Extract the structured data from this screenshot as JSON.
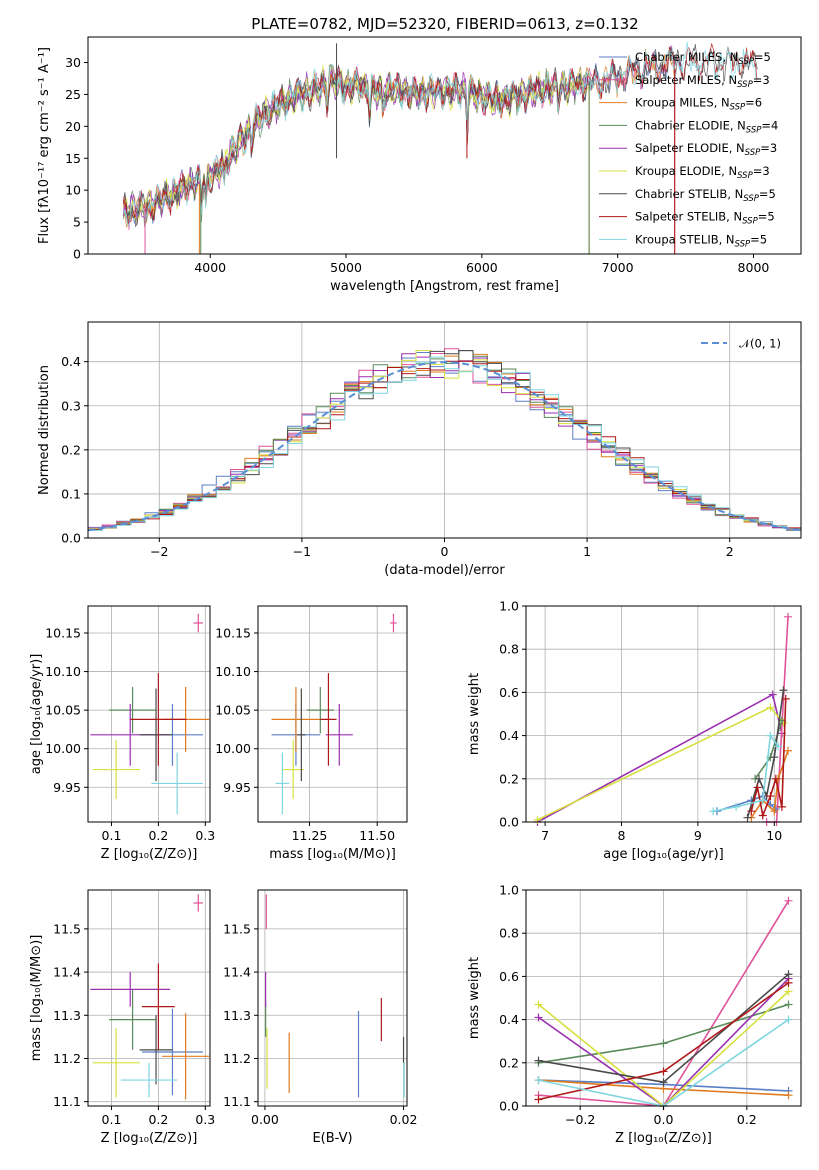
{
  "figure_title": "PLATE=0782, MJD=52320, FIBERID=0613, z=0.132",
  "colors": {
    "chabrier_miles": "#5a7fc7",
    "salpeter_miles": "#e0529a",
    "kroupa_miles": "#e07b1f",
    "chabrier_elodie": "#5a8a5a",
    "salpeter_elodie": "#9a2fb0",
    "kroupa_elodie": "#d6e040",
    "chabrier_stelib": "#4a4a4a",
    "salpeter_stelib": "#b01818",
    "kroupa_stelib": "#7fd6e0",
    "normal": "#5a8fd6"
  },
  "chart_data": [
    {
      "id": "spectrum",
      "type": "line",
      "title": "PLATE=0782, MJD=52320, FIBERID=0613, z=0.132",
      "xlabel": "wavelength [Angstrom, rest frame]",
      "ylabel": "Flux [fλ10⁻¹⁷ erg cm⁻² s⁻¹ A⁻¹]",
      "xlim": [
        3100,
        8350
      ],
      "ylim": [
        0,
        34
      ],
      "xticks": [
        4000,
        5000,
        6000,
        7000,
        8000
      ],
      "yticks": [
        0,
        5,
        10,
        15,
        20,
        25,
        30
      ],
      "legend_position": "right",
      "continuum": {
        "x": [
          3360,
          3450,
          3550,
          3700,
          3850,
          3950,
          4050,
          4200,
          4350,
          4500,
          4650,
          4800,
          4900,
          5000,
          5100,
          5200,
          5350,
          5500,
          5700,
          5900,
          6100,
          6300,
          6500,
          6700,
          6900,
          7100,
          7300,
          7450
        ],
        "y": [
          6.5,
          7,
          7.5,
          9,
          11,
          11.5,
          13,
          17,
          21,
          23.5,
          25,
          26,
          27.5,
          26,
          26.5,
          25.5,
          25.8,
          25,
          25.5,
          25.5,
          24,
          25,
          26,
          26.5,
          27,
          28.5,
          29.5,
          30
        ]
      },
      "series": [
        {
          "name": "Chabrier MILES, N_SSP=5",
          "label_text": "Chabrier MILES, N",
          "label_sub": "SSP",
          "label_suffix": "=5",
          "color_key": "chabrier_miles",
          "x_end": 7480,
          "marker": "plus"
        },
        {
          "name": "Salpeter MILES, N_SSP=3",
          "label_text": "Salpeter MILES, N",
          "label_sub": "SSP",
          "label_suffix": "=3",
          "color_key": "salpeter_miles",
          "x_end": 7420
        },
        {
          "name": "Kroupa MILES, N_SSP=6",
          "label_text": "Kroupa MILES, N",
          "label_sub": "SSP",
          "label_suffix": "=6",
          "color_key": "kroupa_miles",
          "x_end": 7420
        },
        {
          "name": "Chabrier ELODIE, N_SSP=4",
          "label_text": "Chabrier ELODIE, N",
          "label_sub": "SSP",
          "label_suffix": "=4",
          "color_key": "chabrier_elodie",
          "x_end": 6790
        },
        {
          "name": "Salpeter ELODIE, N_SSP=3",
          "label_text": "Salpeter ELODIE, N",
          "label_sub": "SSP",
          "label_suffix": "=3",
          "color_key": "salpeter_elodie",
          "x_end": 6790
        },
        {
          "name": "Kroupa ELODIE, N_SSP=3",
          "label_text": "Kroupa ELODIE, N",
          "label_sub": "SSP",
          "label_suffix": "=3",
          "color_key": "kroupa_elodie",
          "x_end": 6790
        },
        {
          "name": "Chabrier STELIB, N_SSP=5",
          "label_text": "Chabrier STELIB, N",
          "label_sub": "SSP",
          "label_suffix": "=5",
          "color_key": "chabrier_stelib",
          "x_end": 8030
        },
        {
          "name": "Salpeter STELIB, N_SSP=5",
          "label_text": "Salpeter STELIB, N",
          "label_sub": "SSP",
          "label_suffix": "=5",
          "color_key": "salpeter_stelib",
          "x_end": 8030
        },
        {
          "name": "Kroupa STELIB, N_SSP=5",
          "label_text": "Kroupa STELIB, N",
          "label_sub": "SSP",
          "label_suffix": "=5",
          "color_key": "kroupa_stelib",
          "x_end": 8030
        }
      ]
    },
    {
      "id": "residuals",
      "type": "histogram",
      "xlabel": "(data-model)/error",
      "ylabel": "Normed distribution",
      "xlim": [
        -2.5,
        2.5
      ],
      "ylim": [
        0,
        0.49
      ],
      "xticks": [
        -2,
        -1,
        0,
        1,
        2
      ],
      "xtick_labels": [
        "−2",
        "−1",
        "0",
        "1",
        "2"
      ],
      "yticks": [
        0.0,
        0.1,
        0.2,
        0.3,
        0.4
      ],
      "ytick_labels": [
        "0.0",
        "0.1",
        "0.2",
        "0.3",
        "0.4"
      ],
      "grid": true,
      "bin_width": 0.1,
      "legend": [
        {
          "label": "𝒩(0, 1)",
          "style": "dashed",
          "color_key": "normal"
        }
      ],
      "legend_position": "top-right"
    },
    {
      "id": "age_vs_Z",
      "type": "errorbar",
      "xlabel": "Z [log₁₀(Z/Z⊙)]",
      "ylabel": "age  [log₁₀(age/yr)]",
      "xlim": [
        0.05,
        0.31
      ],
      "ylim": [
        9.905,
        10.185
      ],
      "xticks": [
        0.1,
        0.2,
        0.3
      ],
      "xtick_labels": [
        "0.1",
        "0.2",
        "0.3"
      ],
      "yticks": [
        9.95,
        10.0,
        10.05,
        10.1,
        10.15
      ],
      "ytick_labels": [
        "9.95",
        "10.00",
        "10.05",
        "10.10",
        "10.15"
      ],
      "grid": true,
      "points": [
        {
          "color_key": "chabrier_miles",
          "x": 0.23,
          "xerr": 0.065,
          "y": 10.018,
          "yerr": 0.04
        },
        {
          "color_key": "salpeter_miles",
          "x": 0.285,
          "xerr": 0.01,
          "y": 10.163,
          "yerr": 0.012
        },
        {
          "color_key": "kroupa_miles",
          "x": 0.258,
          "xerr": 0.05,
          "y": 10.038,
          "yerr": 0.042
        },
        {
          "color_key": "chabrier_elodie",
          "x": 0.145,
          "xerr": 0.05,
          "y": 10.05,
          "yerr": 0.03
        },
        {
          "color_key": "salpeter_elodie",
          "x": 0.14,
          "xerr": 0.085,
          "y": 10.018,
          "yerr": 0.04
        },
        {
          "color_key": "kroupa_elodie",
          "x": 0.11,
          "xerr": 0.05,
          "y": 9.973,
          "yerr": 0.038
        },
        {
          "color_key": "chabrier_stelib",
          "x": 0.195,
          "xerr": 0.035,
          "y": 10.018,
          "yerr": 0.06
        },
        {
          "color_key": "salpeter_stelib",
          "x": 0.2,
          "xerr": 0.06,
          "y": 10.038,
          "yerr": 0.06
        },
        {
          "color_key": "kroupa_stelib",
          "x": 0.24,
          "xerr": 0.055,
          "y": 9.955,
          "yerr": 0.04
        }
      ]
    },
    {
      "id": "age_vs_mass",
      "type": "errorbar",
      "xlabel": "mass [log₁₀(M/M⊙)]",
      "ylabel": "",
      "xlim": [
        11.06,
        11.61
      ],
      "ylim": [
        9.905,
        10.185
      ],
      "xticks": [
        11.25,
        11.5
      ],
      "xtick_labels": [
        "11.25",
        "11.50"
      ],
      "yticks": [
        9.95,
        10.0,
        10.05,
        10.1,
        10.15
      ],
      "ytick_labels": [
        "9.95",
        "10.00",
        "10.05",
        "10.10",
        "10.15"
      ],
      "grid": true,
      "points": [
        {
          "color_key": "chabrier_miles",
          "x": 11.2,
          "xerr": 0.09,
          "y": 10.018,
          "yerr": 0.04
        },
        {
          "color_key": "salpeter_miles",
          "x": 11.56,
          "xerr": 0.012,
          "y": 10.163,
          "yerr": 0.012
        },
        {
          "color_key": "kroupa_miles",
          "x": 11.2,
          "xerr": 0.09,
          "y": 10.038,
          "yerr": 0.042
        },
        {
          "color_key": "chabrier_elodie",
          "x": 11.29,
          "xerr": 0.05,
          "y": 10.05,
          "yerr": 0.03
        },
        {
          "color_key": "salpeter_elodie",
          "x": 11.36,
          "xerr": 0.05,
          "y": 10.018,
          "yerr": 0.04
        },
        {
          "color_key": "kroupa_elodie",
          "x": 11.19,
          "xerr": 0.04,
          "y": 9.973,
          "yerr": 0.038
        },
        {
          "color_key": "chabrier_stelib",
          "x": 11.22,
          "xerr": 0.015,
          "y": 10.018,
          "yerr": 0.06
        },
        {
          "color_key": "salpeter_stelib",
          "x": 11.32,
          "xerr": 0.03,
          "y": 10.038,
          "yerr": 0.06
        },
        {
          "color_key": "kroupa_stelib",
          "x": 11.15,
          "xerr": 0.025,
          "y": 9.955,
          "yerr": 0.04
        }
      ]
    },
    {
      "id": "weight_vs_age",
      "type": "line",
      "xlabel": "age  [log₁₀(age/yr)]",
      "ylabel": "mass weight",
      "xlim": [
        6.75,
        10.35
      ],
      "ylim": [
        0,
        1.0
      ],
      "xticks": [
        7,
        8,
        9,
        10
      ],
      "xtick_labels": [
        "7",
        "8",
        "9",
        "10"
      ],
      "yticks": [
        0.0,
        0.2,
        0.4,
        0.6,
        0.8,
        1.0
      ],
      "ytick_labels": [
        "0.0",
        "0.2",
        "0.4",
        "0.6",
        "0.8",
        "1.0"
      ],
      "grid": true,
      "series": [
        {
          "color_key": "salpeter_elodie",
          "x": [
            6.9,
            9.98,
            10.1
          ],
          "y": [
            0.0,
            0.59,
            0.41
          ]
        },
        {
          "color_key": "kroupa_elodie",
          "x": [
            6.9,
            9.95,
            10.12
          ],
          "y": [
            0.01,
            0.53,
            0.46
          ]
        },
        {
          "color_key": "salpeter_miles",
          "x": [
            9.9,
            10.03,
            10.18
          ],
          "y": [
            0.0,
            0.0,
            0.95
          ]
        },
        {
          "color_key": "chabrier_miles",
          "x": [
            9.25,
            9.7,
            9.85,
            9.95,
            10.02
          ],
          "y": [
            0.05,
            0.1,
            0.12,
            0.08,
            0.06
          ]
        },
        {
          "color_key": "kroupa_miles",
          "x": [
            9.7,
            9.85,
            10.0,
            10.05,
            10.18
          ],
          "y": [
            0.02,
            0.1,
            0.05,
            0.2,
            0.33
          ]
        },
        {
          "color_key": "chabrier_elodie",
          "x": [
            9.75,
            9.95,
            10.1
          ],
          "y": [
            0.2,
            0.3,
            0.47
          ]
        },
        {
          "color_key": "chabrier_stelib",
          "x": [
            9.65,
            9.8,
            9.9,
            10.0,
            10.12
          ],
          "y": [
            0.02,
            0.2,
            0.12,
            0.3,
            0.61
          ]
        },
        {
          "color_key": "salpeter_stelib",
          "x": [
            9.7,
            9.78,
            9.85,
            9.95,
            10.02,
            10.1,
            10.15
          ],
          "y": [
            0.05,
            0.16,
            0.03,
            0.12,
            0.2,
            0.07,
            0.57
          ]
        },
        {
          "color_key": "kroupa_stelib",
          "x": [
            9.2,
            9.5,
            9.85,
            9.95,
            10.05
          ],
          "y": [
            0.05,
            0.07,
            0.1,
            0.4,
            0.35
          ]
        }
      ]
    },
    {
      "id": "mass_vs_Z",
      "type": "errorbar",
      "xlabel": "Z [log₁₀(Z/Z⊙)]",
      "ylabel": "mass [log₁₀(M/M⊙)]",
      "xlim": [
        0.05,
        0.31
      ],
      "ylim": [
        11.09,
        11.59
      ],
      "xticks": [
        0.1,
        0.2,
        0.3
      ],
      "xtick_labels": [
        "0.1",
        "0.2",
        "0.3"
      ],
      "yticks": [
        11.1,
        11.2,
        11.3,
        11.4,
        11.5
      ],
      "ytick_labels": [
        "11.1",
        "11.2",
        "11.3",
        "11.4",
        "11.5"
      ],
      "grid": true,
      "points": [
        {
          "color_key": "chabrier_miles",
          "x": 0.23,
          "xerr": 0.065,
          "y": 11.215,
          "yerr": 0.1
        },
        {
          "color_key": "salpeter_miles",
          "x": 0.285,
          "xerr": 0.01,
          "y": 11.56,
          "yerr": 0.02
        },
        {
          "color_key": "kroupa_miles",
          "x": 0.258,
          "xerr": 0.05,
          "y": 11.205,
          "yerr": 0.1
        },
        {
          "color_key": "chabrier_elodie",
          "x": 0.145,
          "xerr": 0.05,
          "y": 11.29,
          "yerr": 0.07
        },
        {
          "color_key": "salpeter_elodie",
          "x": 0.14,
          "xerr": 0.085,
          "y": 11.36,
          "yerr": 0.04
        },
        {
          "color_key": "kroupa_elodie",
          "x": 0.11,
          "xerr": 0.05,
          "y": 11.19,
          "yerr": 0.08
        },
        {
          "color_key": "chabrier_stelib",
          "x": 0.195,
          "xerr": 0.035,
          "y": 11.22,
          "yerr": 0.08
        },
        {
          "color_key": "salpeter_stelib",
          "x": 0.2,
          "xerr": 0.035,
          "y": 11.32,
          "yerr": 0.1
        },
        {
          "color_key": "kroupa_stelib",
          "x": 0.18,
          "xerr": 0.06,
          "y": 11.15,
          "yerr": 0.04
        }
      ]
    },
    {
      "id": "mass_vs_EBV",
      "type": "errorbar",
      "xlabel": "E(B-V)",
      "ylabel": "",
      "xlim": [
        -0.001,
        0.0205
      ],
      "ylim": [
        11.09,
        11.59
      ],
      "xticks": [
        0.0,
        0.02
      ],
      "xtick_labels": [
        "0.00",
        "0.02"
      ],
      "yticks": [
        11.1,
        11.2,
        11.3,
        11.4,
        11.5
      ],
      "ytick_labels": [
        "11.1",
        "11.2",
        "11.3",
        "11.4",
        "11.5"
      ],
      "grid": true,
      "points": [
        {
          "color_key": "chabrier_miles",
          "x": 0.0135,
          "xerr": 0,
          "y": 11.21,
          "yerr": 0.1
        },
        {
          "color_key": "salpeter_miles",
          "x": 0.0002,
          "xerr": 0,
          "y": 11.54,
          "yerr": 0.04
        },
        {
          "color_key": "kroupa_miles",
          "x": 0.0035,
          "xerr": 0,
          "y": 11.19,
          "yerr": 0.07
        },
        {
          "color_key": "chabrier_elodie",
          "x": 0.0001,
          "xerr": 0,
          "y": 11.29,
          "yerr": 0.04
        },
        {
          "color_key": "salpeter_elodie",
          "x": 0.0001,
          "xerr": 0,
          "y": 11.36,
          "yerr": 0.04
        },
        {
          "color_key": "kroupa_elodie",
          "x": 0.0003,
          "xerr": 0,
          "y": 11.2,
          "yerr": 0.07
        },
        {
          "color_key": "chabrier_stelib",
          "x": 0.02,
          "xerr": 0,
          "y": 11.22,
          "yerr": 0.03
        },
        {
          "color_key": "salpeter_stelib",
          "x": 0.0168,
          "xerr": 0,
          "y": 11.29,
          "yerr": 0.05
        },
        {
          "color_key": "kroupa_stelib",
          "x": 0.0201,
          "xerr": 0,
          "y": 11.15,
          "yerr": 0.04
        }
      ]
    },
    {
      "id": "weight_vs_Z",
      "type": "line",
      "xlabel": "Z [log₁₀(Z/Z⊙)]",
      "ylabel": "mass weight",
      "xlim": [
        -0.33,
        0.33
      ],
      "ylim": [
        0,
        1.0
      ],
      "xticks": [
        -0.2,
        0.0,
        0.2
      ],
      "xtick_labels": [
        "−0.2",
        "0.0",
        "0.2"
      ],
      "yticks": [
        0.0,
        0.2,
        0.4,
        0.6,
        0.8,
        1.0
      ],
      "ytick_labels": [
        "0.0",
        "0.2",
        "0.4",
        "0.6",
        "0.8",
        "1.0"
      ],
      "grid": true,
      "series": [
        {
          "color_key": "salpeter_miles",
          "x": [
            -0.3,
            0.0,
            0.3
          ],
          "y": [
            0.05,
            0.0,
            0.95
          ]
        },
        {
          "color_key": "chabrier_miles",
          "x": [
            -0.3,
            0.0,
            0.3
          ],
          "y": [
            0.12,
            0.1,
            0.07
          ]
        },
        {
          "color_key": "kroupa_miles",
          "x": [
            -0.3,
            0.0,
            0.3
          ],
          "y": [
            0.12,
            0.08,
            0.05
          ]
        },
        {
          "color_key": "chabrier_elodie",
          "x": [
            -0.3,
            0.0,
            0.3
          ],
          "y": [
            0.2,
            0.29,
            0.47
          ]
        },
        {
          "color_key": "salpeter_elodie",
          "x": [
            -0.3,
            0.0,
            0.3
          ],
          "y": [
            0.41,
            0.0,
            0.59
          ]
        },
        {
          "color_key": "kroupa_elodie",
          "x": [
            -0.3,
            0.0,
            0.3
          ],
          "y": [
            0.47,
            0.0,
            0.53
          ]
        },
        {
          "color_key": "chabrier_stelib",
          "x": [
            -0.3,
            0.0,
            0.3
          ],
          "y": [
            0.21,
            0.11,
            0.61
          ]
        },
        {
          "color_key": "salpeter_stelib",
          "x": [
            -0.3,
            0.0,
            0.3
          ],
          "y": [
            0.03,
            0.16,
            0.57
          ]
        },
        {
          "color_key": "kroupa_stelib",
          "x": [
            -0.3,
            0.0,
            0.3
          ],
          "y": [
            0.12,
            0.0,
            0.4
          ]
        }
      ]
    }
  ]
}
